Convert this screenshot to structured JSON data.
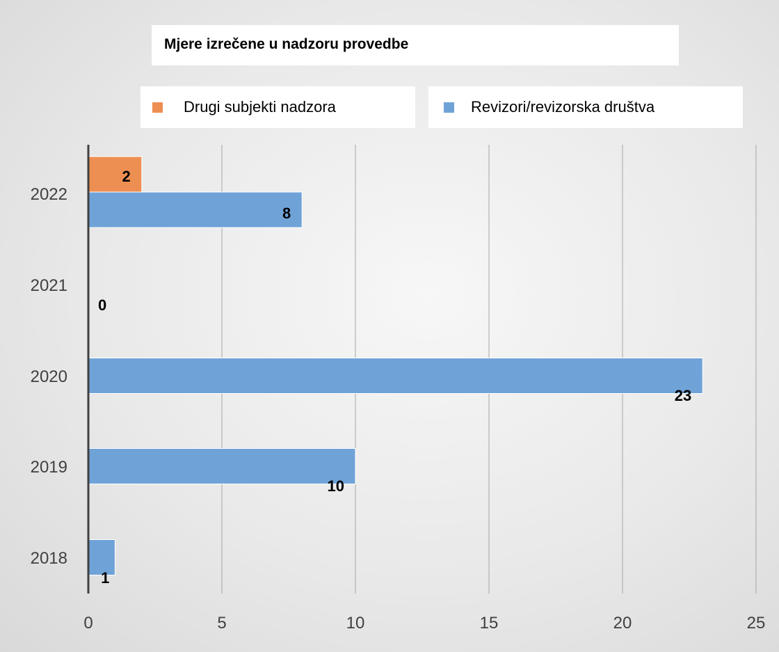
{
  "chart_data": {
    "type": "bar",
    "orientation": "horizontal",
    "title": "Mjere izrečene u nadzoru provedbe",
    "categories": [
      "2018",
      "2019",
      "2020",
      "2021",
      "2022"
    ],
    "series": [
      {
        "name": "Revizori/revizorska društva",
        "color": "#6fa3d8",
        "values": [
          1,
          10,
          23,
          0,
          8
        ]
      },
      {
        "name": "Drugi subjekti nadzora",
        "color": "#ed8f52",
        "values": [
          null,
          null,
          null,
          null,
          2
        ]
      }
    ],
    "data_labels": {
      "2018": "1",
      "2019": "10",
      "2020": "23",
      "2021": "0",
      "2022": [
        "2",
        "8"
      ]
    },
    "xlim": [
      0,
      25
    ],
    "x_ticks": [
      "0",
      "5",
      "10",
      "15",
      "20",
      "25"
    ],
    "grid": "vertical",
    "legend_position": "top"
  }
}
